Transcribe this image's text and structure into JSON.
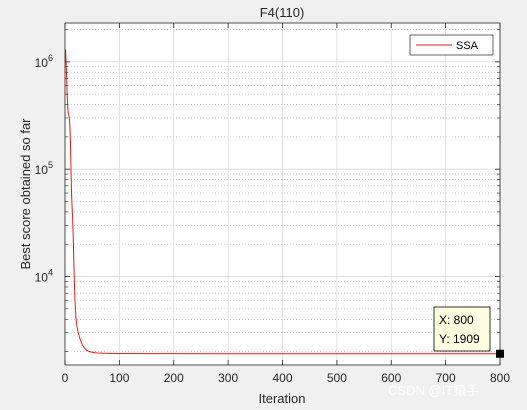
{
  "chart_data": {
    "type": "line",
    "title": "F4(110)",
    "xlabel": "Iteration",
    "ylabel": "Best score obtained so far",
    "xlim": [
      0,
      800
    ],
    "ylim": [
      1500,
      2300000
    ],
    "yscale": "log",
    "grid": true,
    "legend_position": "top-right",
    "x_ticks": [
      0,
      100,
      200,
      300,
      400,
      500,
      600,
      700,
      800
    ],
    "y_ticks": [
      {
        "value": 10000,
        "label_base": "10",
        "label_exp": "4"
      },
      {
        "value": 100000,
        "label_base": "10",
        "label_exp": "5"
      },
      {
        "value": 1000000,
        "label_base": "10",
        "label_exp": "6"
      }
    ],
    "series": [
      {
        "name": "SSA",
        "color": "#e0201b",
        "x": [
          1,
          2,
          3,
          4,
          5,
          6,
          7,
          8,
          9,
          10,
          11,
          12,
          13,
          14,
          15,
          16,
          17,
          18,
          20,
          22,
          25,
          28,
          32,
          36,
          40,
          45,
          50,
          55,
          60,
          70,
          80,
          100,
          150,
          200,
          300,
          400,
          500,
          600,
          700,
          800
        ],
        "y": [
          1300000,
          1000000,
          700000,
          500000,
          380000,
          330000,
          320000,
          300000,
          250000,
          180000,
          100000,
          60000,
          45000,
          35000,
          25000,
          15000,
          10000,
          6500,
          4200,
          3400,
          2900,
          2600,
          2300,
          2150,
          2050,
          2000,
          1970,
          1950,
          1940,
          1930,
          1925,
          1920,
          1915,
          1912,
          1911,
          1910,
          1910,
          1909,
          1909,
          1909
        ]
      }
    ],
    "datatip": {
      "x_label": "X: 800",
      "y_label": "Y: 1909",
      "x": 800,
      "y": 1909
    }
  },
  "watermark": "CSDN @IT猿手"
}
